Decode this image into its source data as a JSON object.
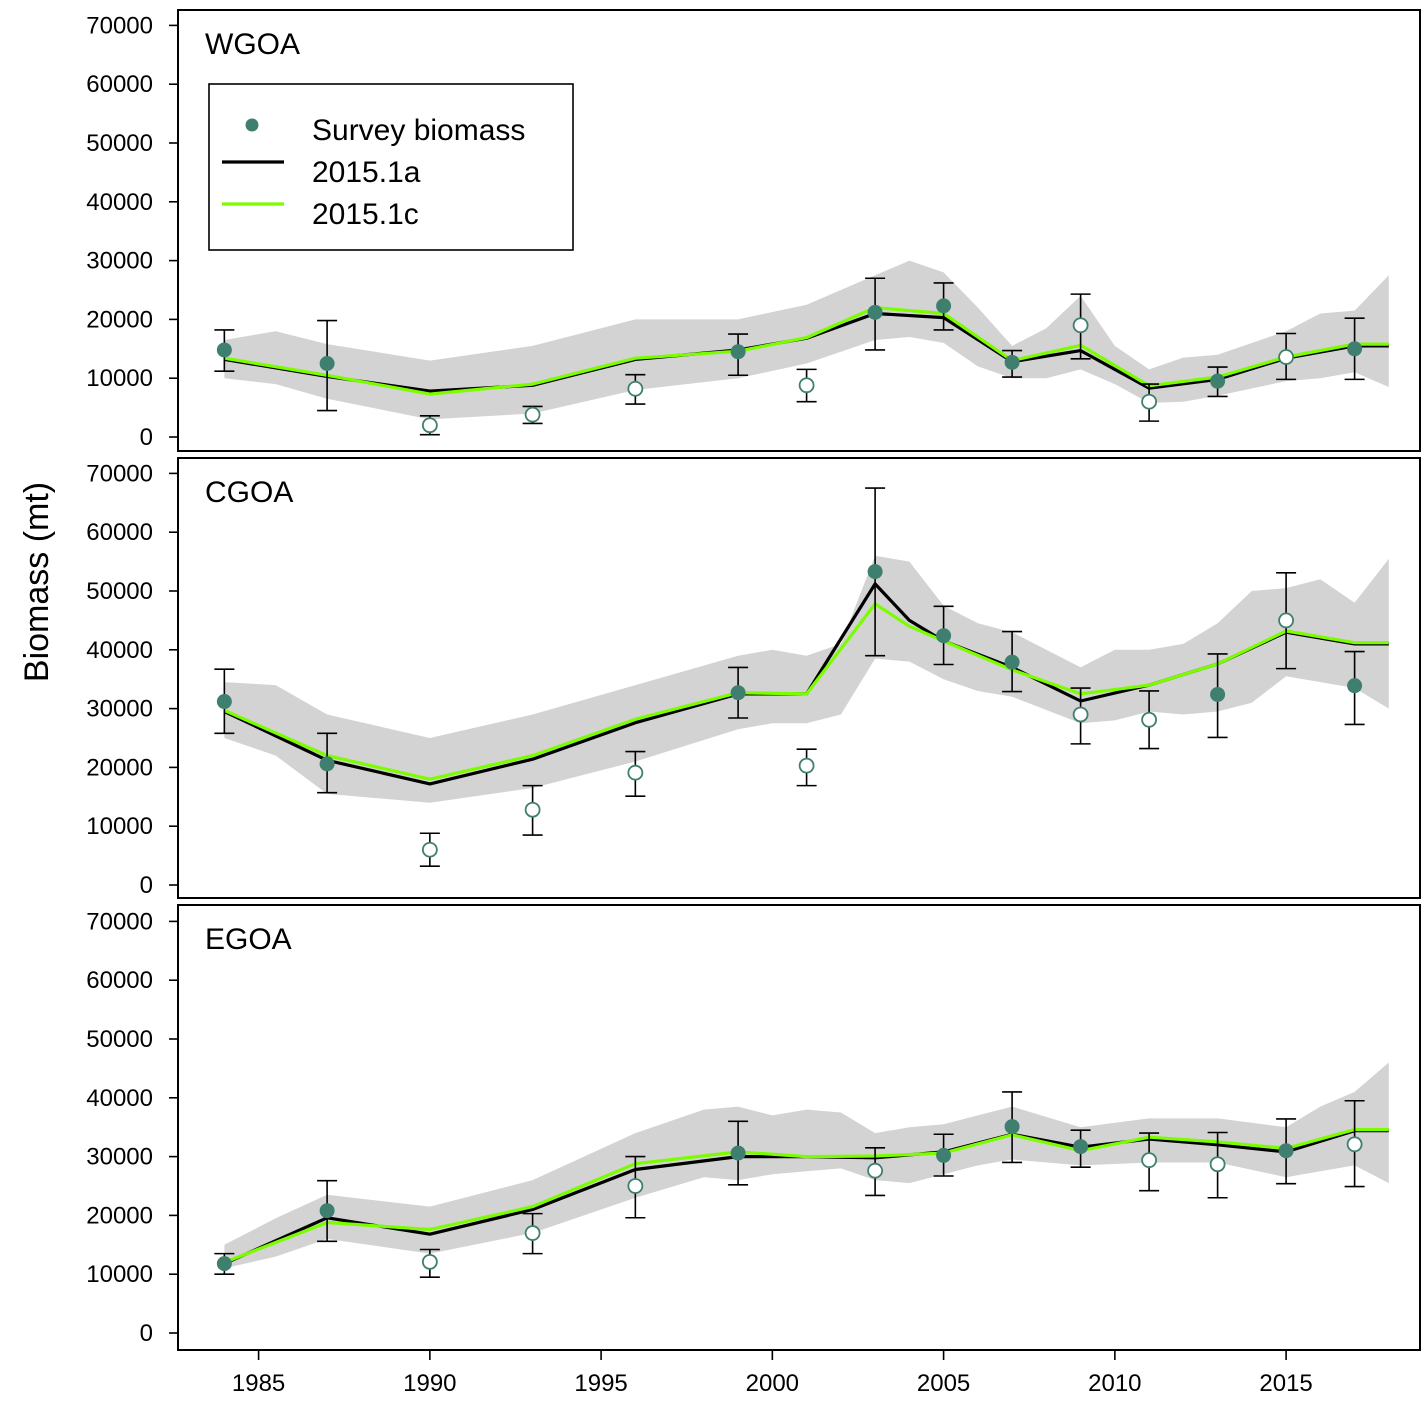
{
  "chart_data": {
    "type": "line",
    "ylabel": "Biomass (mt)",
    "xlabel": "",
    "xlim": [
      1982.5,
      2018.8
    ],
    "ylim": [
      0,
      70000
    ],
    "y_ticks": [
      0,
      10000,
      20000,
      30000,
      40000,
      50000,
      60000,
      70000
    ],
    "x_ticks": [
      1985,
      1990,
      1995,
      2000,
      2005,
      2010,
      2015
    ],
    "legend": {
      "placement": "top-left (WGOA panel)",
      "entries": [
        {
          "label": "Survey biomass",
          "kind": "point",
          "color": "#3f7f6f"
        },
        {
          "label": "2015.1a",
          "kind": "line",
          "color": "#000000"
        },
        {
          "label": "2015.1c",
          "kind": "line",
          "color": "#7cfc00"
        }
      ]
    },
    "colors": {
      "ci_band": "#d3d3d3",
      "survey_point": "#3f7f6f",
      "model_a": "#000000",
      "model_c": "#7cfc00"
    },
    "panels": [
      {
        "name": "WGOA",
        "series": [
          {
            "name": "2015.1a",
            "x": [
              1984,
              1987,
              1990,
              1993,
              1996,
              1999,
              2001,
              2003,
              2005,
              2007,
              2009,
              2011,
              2013,
              2015,
              2017,
              2018
            ],
            "values": [
              13200,
              10300,
              7800,
              8800,
              13200,
              14800,
              16800,
              21000,
              20300,
              12800,
              14700,
              8300,
              9800,
              13400,
              15500,
              15500
            ]
          },
          {
            "name": "2015.1c",
            "x": [
              1984,
              1987,
              1990,
              1993,
              1996,
              1999,
              2001,
              2003,
              2005,
              2007,
              2009,
              2011,
              2013,
              2015,
              2017,
              2018
            ],
            "values": [
              13400,
              10500,
              7300,
              9000,
              13400,
              14600,
              16900,
              22000,
              21000,
              13000,
              15600,
              8700,
              10200,
              13600,
              15800,
              15800
            ]
          }
        ],
        "ci": {
          "x": [
            1984,
            1985.5,
            1987,
            1990,
            1993,
            1996,
            1999,
            2001,
            2003,
            2004,
            2005,
            2006,
            2007,
            2008,
            2009,
            2010,
            2011,
            2012,
            2013,
            2015,
            2016,
            2017,
            2018
          ],
          "lower": [
            10000,
            9000,
            6500,
            3000,
            4000,
            8000,
            10000,
            12500,
            16500,
            17000,
            16000,
            12000,
            10000,
            10000,
            11500,
            9000,
            5800,
            6000,
            7000,
            9500,
            10000,
            11000,
            8500
          ],
          "upper": [
            16500,
            18000,
            15800,
            13000,
            15500,
            20000,
            20000,
            22500,
            27500,
            30000,
            28000,
            22000,
            15500,
            18500,
            24000,
            15500,
            11500,
            13500,
            14000,
            18000,
            21000,
            21500,
            27500
          ]
        },
        "survey": [
          {
            "year": 1984,
            "value": 14800,
            "low": 11200,
            "high": 18200,
            "used": true
          },
          {
            "year": 1987,
            "value": 12500,
            "low": 4500,
            "high": 19800,
            "used": true
          },
          {
            "year": 1990,
            "value": 2000,
            "low": 400,
            "high": 3600,
            "used": false
          },
          {
            "year": 1993,
            "value": 3800,
            "low": 2300,
            "high": 5200,
            "used": false
          },
          {
            "year": 1996,
            "value": 8200,
            "low": 5600,
            "high": 10600,
            "used": false
          },
          {
            "year": 1999,
            "value": 14500,
            "low": 10500,
            "high": 17500,
            "used": true
          },
          {
            "year": 2001,
            "value": 8800,
            "low": 6000,
            "high": 11500,
            "used": false
          },
          {
            "year": 2003,
            "value": 21200,
            "low": 14800,
            "high": 27000,
            "used": true
          },
          {
            "year": 2005,
            "value": 22300,
            "low": 18200,
            "high": 26200,
            "used": true
          },
          {
            "year": 2007,
            "value": 12700,
            "low": 10200,
            "high": 14700,
            "used": true
          },
          {
            "year": 2009,
            "value": 19000,
            "low": 13300,
            "high": 24300,
            "used": false
          },
          {
            "year": 2011,
            "value": 6000,
            "low": 2700,
            "high": 9000,
            "used": false
          },
          {
            "year": 2013,
            "value": 9500,
            "low": 6900,
            "high": 11900,
            "used": true
          },
          {
            "year": 2015,
            "value": 13600,
            "low": 9800,
            "high": 17600,
            "used": false
          },
          {
            "year": 2017,
            "value": 15000,
            "low": 9800,
            "high": 20200,
            "used": true
          }
        ]
      },
      {
        "name": "CGOA",
        "series": [
          {
            "name": "2015.1a",
            "x": [
              1984,
              1987,
              1990,
              1993,
              1996,
              1999,
              2001,
              2003,
              2004,
              2005,
              2007,
              2009,
              2011,
              2013,
              2015,
              2017,
              2018
            ],
            "values": [
              29500,
              21200,
              17200,
              21400,
              27600,
              32500,
              32500,
              51200,
              45000,
              41500,
              37000,
              31300,
              34000,
              37600,
              43000,
              41000,
              41000
            ]
          },
          {
            "name": "2015.1c",
            "x": [
              1984,
              1987,
              1990,
              1993,
              1996,
              1999,
              2001,
              2003,
              2004,
              2005,
              2007,
              2009,
              2011,
              2013,
              2015,
              2017,
              2018
            ],
            "values": [
              29700,
              22000,
              18000,
              22000,
              28200,
              32700,
              32500,
              47800,
              44000,
              41500,
              36600,
              32500,
              34000,
              37600,
              43200,
              41200,
              41200
            ]
          }
        ],
        "ci": {
          "x": [
            1984,
            1985.5,
            1987,
            1990,
            1993,
            1996,
            1999,
            2000,
            2001,
            2002,
            2003,
            2004,
            2005,
            2006,
            2007,
            2009,
            2010,
            2011,
            2012,
            2013,
            2014,
            2015,
            2016,
            2017,
            2018
          ],
          "lower": [
            25000,
            22000,
            15500,
            14000,
            16500,
            21000,
            26500,
            27500,
            27500,
            29000,
            38500,
            38000,
            35000,
            33000,
            32000,
            27500,
            28000,
            29500,
            29000,
            29500,
            31000,
            35500,
            34500,
            33500,
            30000
          ],
          "upper": [
            34500,
            34000,
            29000,
            25000,
            29000,
            34000,
            39000,
            40000,
            39000,
            41000,
            56000,
            55000,
            47500,
            44500,
            43000,
            37000,
            40000,
            40000,
            41000,
            44500,
            50000,
            50500,
            52000,
            48000,
            55500
          ]
        },
        "survey": [
          {
            "year": 1984,
            "value": 31200,
            "low": 25800,
            "high": 36700,
            "used": true
          },
          {
            "year": 1987,
            "value": 20600,
            "low": 15700,
            "high": 25800,
            "used": true
          },
          {
            "year": 1990,
            "value": 6000,
            "low": 3200,
            "high": 8800,
            "used": false
          },
          {
            "year": 1993,
            "value": 12800,
            "low": 8500,
            "high": 16900,
            "used": false
          },
          {
            "year": 1996,
            "value": 19100,
            "low": 15100,
            "high": 22700,
            "used": false
          },
          {
            "year": 1999,
            "value": 32700,
            "low": 28400,
            "high": 37000,
            "used": true
          },
          {
            "year": 2001,
            "value": 20300,
            "low": 16900,
            "high": 23100,
            "used": false
          },
          {
            "year": 2003,
            "value": 53300,
            "low": 39000,
            "high": 67500,
            "used": true
          },
          {
            "year": 2005,
            "value": 42400,
            "low": 37500,
            "high": 47400,
            "used": true
          },
          {
            "year": 2007,
            "value": 37900,
            "low": 32900,
            "high": 43100,
            "used": true
          },
          {
            "year": 2009,
            "value": 29000,
            "low": 24000,
            "high": 33500,
            "used": false
          },
          {
            "year": 2011,
            "value": 28100,
            "low": 23200,
            "high": 33000,
            "used": false
          },
          {
            "year": 2013,
            "value": 32400,
            "low": 25100,
            "high": 39300,
            "used": true
          },
          {
            "year": 2015,
            "value": 45000,
            "low": 36800,
            "high": 53100,
            "used": false
          },
          {
            "year": 2017,
            "value": 33900,
            "low": 27300,
            "high": 39700,
            "used": true
          }
        ]
      },
      {
        "name": "EGOA",
        "series": [
          {
            "name": "2015.1a",
            "x": [
              1984,
              1987,
              1990,
              1993,
              1996,
              1999,
              2001,
              2003,
              2005,
              2007,
              2009,
              2011,
              2013,
              2015,
              2017,
              2018
            ],
            "values": [
              11800,
              19600,
              16800,
              21000,
              27800,
              30000,
              30000,
              29800,
              30800,
              33800,
              31600,
              33000,
              32000,
              30800,
              34400,
              34400
            ]
          },
          {
            "name": "2015.1c",
            "x": [
              1984,
              1987,
              1990,
              1993,
              1996,
              1999,
              2001,
              2003,
              2005,
              2007,
              2009,
              2011,
              2013,
              2015,
              2017,
              2018
            ],
            "values": [
              12000,
              18800,
              17600,
              21500,
              28800,
              30800,
              30000,
              30100,
              30600,
              33700,
              31000,
              33300,
              32500,
              31400,
              34600,
              34600
            ]
          }
        ],
        "ci": {
          "x": [
            1984,
            1985.5,
            1987,
            1990,
            1993,
            1996,
            1998,
            1999,
            2000,
            2001,
            2002,
            2003,
            2004,
            2005,
            2006,
            2007,
            2009,
            2011,
            2013,
            2015,
            2016,
            2017,
            2018
          ],
          "lower": [
            11000,
            13000,
            16000,
            13500,
            17000,
            23000,
            26500,
            26000,
            27000,
            27500,
            28000,
            26000,
            25500,
            27000,
            28500,
            29500,
            28500,
            29000,
            29000,
            26500,
            27500,
            28500,
            25500
          ],
          "upper": [
            15000,
            19500,
            23500,
            21500,
            26000,
            34000,
            38000,
            38500,
            37000,
            38000,
            37500,
            34000,
            35000,
            35500,
            37000,
            38500,
            35000,
            36500,
            36500,
            35000,
            38500,
            41000,
            46000
          ]
        },
        "survey": [
          {
            "year": 1984,
            "value": 11800,
            "low": 10000,
            "high": 13500,
            "used": true
          },
          {
            "year": 1987,
            "value": 20800,
            "low": 15600,
            "high": 25900,
            "used": true
          },
          {
            "year": 1990,
            "value": 12100,
            "low": 9500,
            "high": 14200,
            "used": false
          },
          {
            "year": 1993,
            "value": 17000,
            "low": 13500,
            "high": 20300,
            "used": false
          },
          {
            "year": 1996,
            "value": 25000,
            "low": 19600,
            "high": 30000,
            "used": false
          },
          {
            "year": 1999,
            "value": 30600,
            "low": 25200,
            "high": 36000,
            "used": true
          },
          {
            "year": 2003,
            "value": 27600,
            "low": 23400,
            "high": 31500,
            "used": false
          },
          {
            "year": 2005,
            "value": 30200,
            "low": 26700,
            "high": 33800,
            "used": true
          },
          {
            "year": 2007,
            "value": 35100,
            "low": 29000,
            "high": 41000,
            "used": true
          },
          {
            "year": 2009,
            "value": 31700,
            "low": 28200,
            "high": 34500,
            "used": true
          },
          {
            "year": 2011,
            "value": 29400,
            "low": 24200,
            "high": 34000,
            "used": false
          },
          {
            "year": 2013,
            "value": 28700,
            "low": 23000,
            "high": 34100,
            "used": false
          },
          {
            "year": 2015,
            "value": 31000,
            "low": 25400,
            "high": 36400,
            "used": true
          },
          {
            "year": 2017,
            "value": 32100,
            "low": 24900,
            "high": 39500,
            "used": false
          }
        ]
      }
    ]
  }
}
